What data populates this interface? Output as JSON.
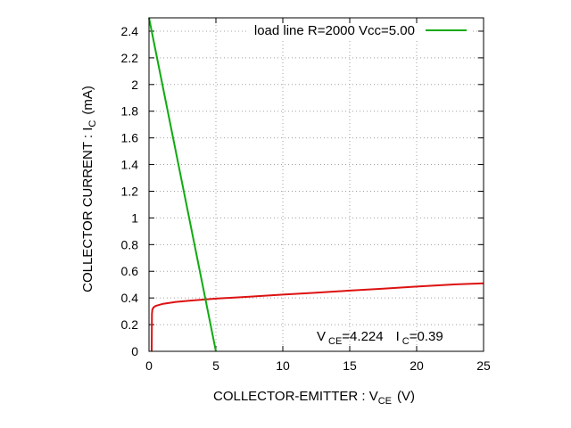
{
  "chart_data": {
    "type": "line",
    "xlabel": {
      "main": "COLLECTOR-EMITTER : V",
      "sub": "CE",
      "unit": "(V)"
    },
    "ylabel": {
      "main": "COLLECTOR CURRENT : I",
      "sub": "C",
      "unit": "(mA)"
    },
    "xlim": [
      0,
      25
    ],
    "ylim": [
      0,
      2.5
    ],
    "x_ticks": [
      0,
      5,
      10,
      15,
      20,
      25
    ],
    "x_tick_labels": [
      "0",
      "5",
      "10",
      "15",
      "20",
      "25"
    ],
    "y_ticks": [
      0,
      0.2,
      0.4,
      0.6,
      0.8,
      1,
      1.2,
      1.4,
      1.6,
      1.8,
      2,
      2.2,
      2.4
    ],
    "y_tick_labels": [
      "0",
      "0.2",
      "0.4",
      "0.6",
      "0.8",
      "1",
      "1.2",
      "1.4",
      "1.6",
      "1.8",
      "2",
      "2.2",
      "2.4"
    ],
    "grid": true,
    "legend_position": "top-right",
    "series": [
      {
        "name": "",
        "color": "#dd1111",
        "x": [
          0.2,
          0.22,
          0.25,
          0.35,
          0.5,
          1,
          2,
          3,
          5,
          7.5,
          10,
          12.5,
          15,
          17.5,
          20,
          22.5,
          25
        ],
        "y": [
          0,
          0.28,
          0.315,
          0.33,
          0.34,
          0.355,
          0.37,
          0.38,
          0.395,
          0.41,
          0.425,
          0.44,
          0.455,
          0.47,
          0.485,
          0.5,
          0.51
        ]
      },
      {
        "name": "load line R=2000 Vcc=5.00",
        "color": "#11aa11",
        "x": [
          0,
          5
        ],
        "y": [
          2.5,
          0
        ]
      }
    ],
    "annotation": {
      "v_main": "V",
      "v_sub": "CE",
      "v_value": "=4.224",
      "i_main": "I",
      "i_sub": "C",
      "i_value": "=0.39"
    }
  }
}
